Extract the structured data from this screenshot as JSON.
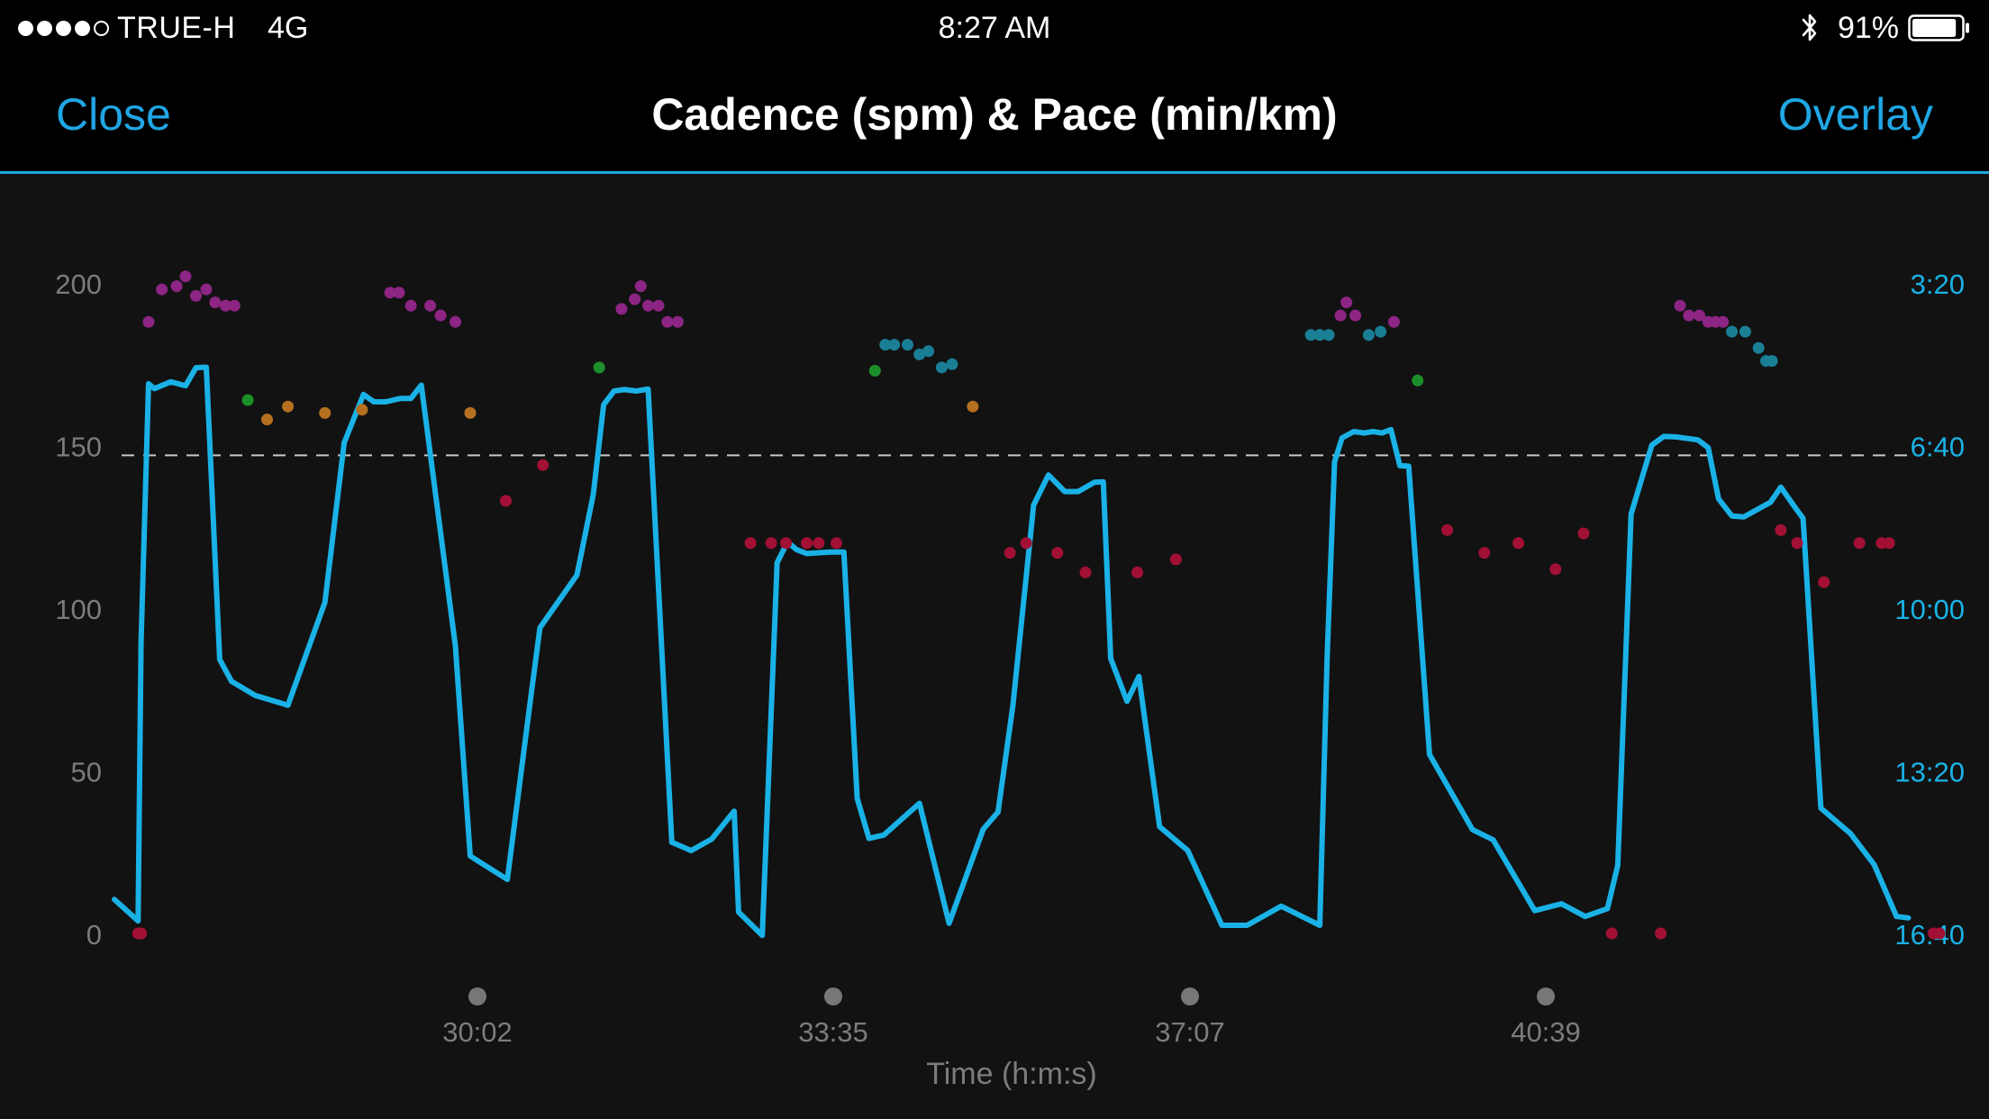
{
  "status_bar": {
    "carrier": "TRUE-H",
    "network": "4G",
    "time": "8:27 AM",
    "battery_percent": "91%",
    "signal_bars": 4,
    "signal_max": 5,
    "battery_level": 0.91,
    "icons": [
      "signal-dots-icon",
      "bluetooth-icon",
      "battery-icon"
    ]
  },
  "nav_bar": {
    "close_label": "Close",
    "title": "Cadence (spm) & Pace (min/km)",
    "overlay_label": "Overlay",
    "accent_color": "#20a6e3"
  },
  "chart_data": {
    "type": "line",
    "title": "Cadence (spm) & Pace (min/km)",
    "xlabel": "Time (h:m:s)",
    "x_ticks": [
      "30:02",
      "33:35",
      "37:07",
      "40:39"
    ],
    "y_left": {
      "label": "Cadence (spm)",
      "ticks": [
        "0",
        "50",
        "100",
        "150",
        "200"
      ],
      "range": [
        0,
        200
      ]
    },
    "y_right": {
      "label": "Pace (min/km)",
      "ticks": [
        "3:20",
        "6:40",
        "10:00",
        "13:20",
        "16:40"
      ],
      "range_minutes": [
        3.333,
        16.667
      ],
      "color": "#1ab2e6"
    },
    "average_line": {
      "value": 147,
      "style": "dashed",
      "color": "#cccccc"
    },
    "x_range_seconds": [
      1487,
      2704
    ],
    "grid": false,
    "legend": "none",
    "series": [
      {
        "type": "line",
        "axis": "right",
        "color": "#1ab2e6",
        "points": [
          [
            1487,
            15.97
          ],
          [
            1503,
            16.41
          ],
          [
            1505,
            10.7
          ],
          [
            1510,
            5.4
          ],
          [
            1514,
            5.5
          ],
          [
            1525,
            5.36
          ],
          [
            1535,
            5.44
          ],
          [
            1542,
            5.07
          ],
          [
            1549,
            5.06
          ],
          [
            1558,
            11.05
          ],
          [
            1566,
            11.5
          ],
          [
            1582,
            11.79
          ],
          [
            1604,
            11.99
          ],
          [
            1629,
            9.88
          ],
          [
            1642,
            6.61
          ],
          [
            1655,
            5.62
          ],
          [
            1662,
            5.77
          ],
          [
            1670,
            5.77
          ],
          [
            1680,
            5.7
          ],
          [
            1687,
            5.7
          ],
          [
            1694,
            5.43
          ],
          [
            1717,
            10.77
          ],
          [
            1727,
            15.08
          ],
          [
            1752,
            15.56
          ],
          [
            1768,
            11.79
          ],
          [
            1774,
            10.4
          ],
          [
            1799,
            9.32
          ],
          [
            1810,
            7.67
          ],
          [
            1817,
            5.83
          ],
          [
            1824,
            5.55
          ],
          [
            1831,
            5.52
          ],
          [
            1839,
            5.55
          ],
          [
            1847,
            5.51
          ],
          [
            1863,
            14.8
          ],
          [
            1876,
            14.97
          ],
          [
            1890,
            14.73
          ],
          [
            1905,
            14.16
          ],
          [
            1908,
            16.23
          ],
          [
            1924,
            16.71
          ],
          [
            1934,
            9.07
          ],
          [
            1941,
            8.64
          ],
          [
            1947,
            8.8
          ],
          [
            1954,
            8.88
          ],
          [
            1970,
            8.85
          ],
          [
            1979,
            8.85
          ],
          [
            1988,
            13.9
          ],
          [
            1996,
            14.72
          ],
          [
            2006,
            14.65
          ],
          [
            2030,
            14.0
          ],
          [
            2050,
            16.46
          ],
          [
            2073,
            14.53
          ],
          [
            2083,
            14.18
          ],
          [
            2093,
            12.0
          ],
          [
            2107,
            7.89
          ],
          [
            2117,
            7.27
          ],
          [
            2128,
            7.61
          ],
          [
            2137,
            7.61
          ],
          [
            2148,
            7.42
          ],
          [
            2154,
            7.41
          ],
          [
            2159,
            11.03
          ],
          [
            2170,
            11.91
          ],
          [
            2178,
            11.4
          ],
          [
            2192,
            14.48
          ],
          [
            2211,
            14.97
          ],
          [
            2234,
            16.5
          ],
          [
            2251,
            16.5
          ],
          [
            2274,
            16.11
          ],
          [
            2300,
            16.5
          ],
          [
            2305,
            10.98
          ],
          [
            2310,
            7.0
          ],
          [
            2315,
            6.51
          ],
          [
            2323,
            6.38
          ],
          [
            2330,
            6.41
          ],
          [
            2336,
            6.38
          ],
          [
            2342,
            6.41
          ],
          [
            2348,
            6.34
          ],
          [
            2354,
            7.08
          ],
          [
            2360,
            7.09
          ],
          [
            2374,
            13.0
          ],
          [
            2403,
            14.54
          ],
          [
            2417,
            14.75
          ],
          [
            2445,
            16.2
          ],
          [
            2463,
            16.06
          ],
          [
            2479,
            16.32
          ],
          [
            2494,
            16.16
          ],
          [
            2501,
            15.27
          ],
          [
            2510,
            8.07
          ],
          [
            2524,
            6.66
          ],
          [
            2532,
            6.48
          ],
          [
            2540,
            6.49
          ],
          [
            2555,
            6.55
          ],
          [
            2562,
            6.71
          ],
          [
            2569,
            7.76
          ],
          [
            2578,
            8.11
          ],
          [
            2586,
            8.13
          ],
          [
            2604,
            7.83
          ],
          [
            2611,
            7.52
          ],
          [
            2620,
            7.91
          ],
          [
            2626,
            8.16
          ],
          [
            2638,
            14.1
          ],
          [
            2658,
            14.62
          ],
          [
            2674,
            15.26
          ],
          [
            2689,
            16.32
          ],
          [
            2697,
            16.35
          ]
        ]
      },
      {
        "type": "scatter",
        "axis": "left",
        "name": "cadence",
        "zone_colors": {
          "red": "#a31035",
          "orange": "#b5701f",
          "green": "#1d8f2a",
          "teal": "#1a7f95",
          "purple": "#8d2584"
        },
        "points": [
          [
            1503,
            0,
            "red"
          ],
          [
            1505,
            0,
            "red"
          ],
          [
            1510,
            188,
            "purple"
          ],
          [
            1519,
            198,
            "purple"
          ],
          [
            1529,
            199,
            "purple"
          ],
          [
            1535,
            202,
            "purple"
          ],
          [
            1542,
            196,
            "purple"
          ],
          [
            1549,
            198,
            "purple"
          ],
          [
            1555,
            194,
            "purple"
          ],
          [
            1562,
            193,
            "purple"
          ],
          [
            1568,
            193,
            "purple"
          ],
          [
            1577,
            164,
            "green"
          ],
          [
            1590,
            158,
            "orange"
          ],
          [
            1604,
            162,
            "orange"
          ],
          [
            1629,
            160,
            "orange"
          ],
          [
            1654,
            161,
            "orange"
          ],
          [
            1673,
            197,
            "purple"
          ],
          [
            1679,
            197,
            "purple"
          ],
          [
            1687,
            193,
            "purple"
          ],
          [
            1700,
            193,
            "purple"
          ],
          [
            1707,
            190,
            "purple"
          ],
          [
            1717,
            188,
            "purple"
          ],
          [
            1727,
            160,
            "orange"
          ],
          [
            1751,
            133,
            "red"
          ],
          [
            1776,
            144,
            "red"
          ],
          [
            1814,
            174,
            "green"
          ],
          [
            1829,
            192,
            "purple"
          ],
          [
            1838,
            195,
            "purple"
          ],
          [
            1842,
            199,
            "purple"
          ],
          [
            1847,
            193,
            "purple"
          ],
          [
            1854,
            193,
            "purple"
          ],
          [
            1860,
            188,
            "purple"
          ],
          [
            1867,
            188,
            "purple"
          ],
          [
            1916,
            120,
            "red"
          ],
          [
            1930,
            120,
            "red"
          ],
          [
            1940,
            120,
            "red"
          ],
          [
            1954,
            120,
            "red"
          ],
          [
            1962,
            120,
            "red"
          ],
          [
            1974,
            120,
            "red"
          ],
          [
            2000,
            173,
            "green"
          ],
          [
            2007,
            181,
            "teal"
          ],
          [
            2013,
            181,
            "teal"
          ],
          [
            2022,
            181,
            "teal"
          ],
          [
            2030,
            178,
            "teal"
          ],
          [
            2036,
            179,
            "teal"
          ],
          [
            2045,
            174,
            "teal"
          ],
          [
            2052,
            175,
            "teal"
          ],
          [
            2066,
            162,
            "orange"
          ],
          [
            2091,
            117,
            "red"
          ],
          [
            2102,
            120,
            "red"
          ],
          [
            2123,
            117,
            "red"
          ],
          [
            2142,
            111,
            "red"
          ],
          [
            2177,
            111,
            "red"
          ],
          [
            2203,
            115,
            "red"
          ],
          [
            2294,
            184,
            "teal"
          ],
          [
            2300,
            184,
            "teal"
          ],
          [
            2306,
            184,
            "teal"
          ],
          [
            2314,
            190,
            "purple"
          ],
          [
            2318,
            194,
            "purple"
          ],
          [
            2324,
            190,
            "purple"
          ],
          [
            2333,
            184,
            "teal"
          ],
          [
            2341,
            185,
            "teal"
          ],
          [
            2350,
            188,
            "purple"
          ],
          [
            2366,
            170,
            "green"
          ],
          [
            2386,
            124,
            "red"
          ],
          [
            2411,
            117,
            "red"
          ],
          [
            2434,
            120,
            "red"
          ],
          [
            2459,
            112,
            "red"
          ],
          [
            2478,
            123,
            "red"
          ],
          [
            2497,
            0,
            "red"
          ],
          [
            2530,
            0,
            "red"
          ],
          [
            2543,
            193,
            "purple"
          ],
          [
            2549,
            190,
            "purple"
          ],
          [
            2556,
            190,
            "purple"
          ],
          [
            2562,
            188,
            "purple"
          ],
          [
            2567,
            188,
            "purple"
          ],
          [
            2572,
            188,
            "purple"
          ],
          [
            2578,
            185,
            "teal"
          ],
          [
            2587,
            185,
            "teal"
          ],
          [
            2596,
            180,
            "teal"
          ],
          [
            2601,
            176,
            "teal"
          ],
          [
            2605,
            176,
            "teal"
          ],
          [
            2611,
            124,
            "red"
          ],
          [
            2622,
            120,
            "red"
          ],
          [
            2640,
            108,
            "red"
          ],
          [
            2664,
            120,
            "red"
          ],
          [
            2679,
            120,
            "red"
          ],
          [
            2684,
            120,
            "red"
          ],
          [
            2714,
            0,
            "red"
          ],
          [
            2718,
            0,
            "red"
          ],
          [
            2760,
            0,
            "red"
          ],
          [
            2764,
            0,
            "red"
          ]
        ]
      }
    ]
  }
}
